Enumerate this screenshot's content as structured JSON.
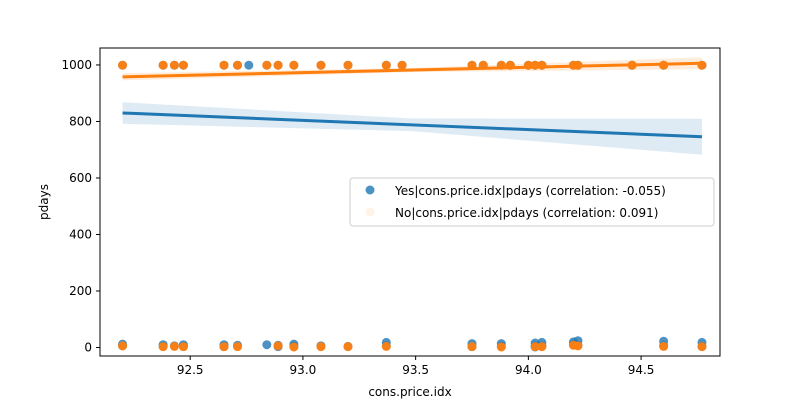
{
  "chart_data": {
    "type": "scatter",
    "title": "",
    "xlabel": "cons.price.idx",
    "ylabel": "pdays",
    "xlim": [
      92.1,
      94.85
    ],
    "ylim": [
      -30,
      1060
    ],
    "xticks": [
      92.5,
      93.0,
      93.5,
      94.0,
      94.5
    ],
    "xtick_labels": [
      "92.5",
      "93.0",
      "93.5",
      "94.0",
      "94.5"
    ],
    "yticks": [
      0,
      200,
      400,
      600,
      800,
      1000
    ],
    "ytick_labels": [
      "0",
      "200",
      "400",
      "600",
      "800",
      "1000"
    ],
    "grid": false,
    "legend_placement": "center-right",
    "series": [
      {
        "name": "Yes|cons.price.idx|pdays (correlation: -0.055)",
        "color": "#1f77b4",
        "marker": "circle",
        "points": [
          [
            92.2,
            999
          ],
          [
            92.38,
            999
          ],
          [
            92.43,
            999
          ],
          [
            92.47,
            999
          ],
          [
            92.65,
            999
          ],
          [
            92.71,
            999
          ],
          [
            92.76,
            999
          ],
          [
            92.84,
            999
          ],
          [
            92.89,
            999
          ],
          [
            92.96,
            999
          ],
          [
            93.08,
            999
          ],
          [
            93.2,
            999
          ],
          [
            93.37,
            999
          ],
          [
            93.44,
            999
          ],
          [
            93.75,
            999
          ],
          [
            93.8,
            999
          ],
          [
            93.88,
            999
          ],
          [
            93.92,
            999
          ],
          [
            94.0,
            999
          ],
          [
            94.03,
            999
          ],
          [
            94.06,
            999
          ],
          [
            94.2,
            999
          ],
          [
            94.22,
            999
          ],
          [
            94.46,
            999
          ],
          [
            94.6,
            999
          ],
          [
            94.77,
            999
          ],
          [
            92.2,
            12
          ],
          [
            92.2,
            6
          ],
          [
            92.38,
            10
          ],
          [
            92.38,
            4
          ],
          [
            92.43,
            6
          ],
          [
            92.47,
            10
          ],
          [
            92.47,
            4
          ],
          [
            92.65,
            10
          ],
          [
            92.65,
            3
          ],
          [
            92.71,
            8
          ],
          [
            92.84,
            10
          ],
          [
            92.89,
            8
          ],
          [
            92.89,
            3
          ],
          [
            92.96,
            12
          ],
          [
            92.96,
            4
          ],
          [
            93.08,
            6
          ],
          [
            93.2,
            4
          ],
          [
            93.37,
            18
          ],
          [
            93.37,
            6
          ],
          [
            93.75,
            14
          ],
          [
            93.75,
            3
          ],
          [
            93.88,
            14
          ],
          [
            93.88,
            4
          ],
          [
            94.03,
            16
          ],
          [
            94.03,
            6
          ],
          [
            94.03,
            2
          ],
          [
            94.06,
            18
          ],
          [
            94.06,
            5
          ],
          [
            94.2,
            20
          ],
          [
            94.2,
            10
          ],
          [
            94.22,
            24
          ],
          [
            94.22,
            8
          ],
          [
            94.6,
            22
          ],
          [
            94.6,
            6
          ],
          [
            94.77,
            18
          ],
          [
            94.77,
            4
          ]
        ],
        "fit": {
          "x": [
            92.2,
            94.77
          ],
          "y": [
            830,
            746
          ]
        }
      },
      {
        "name": "No|cons.price.idx|pdays (correlation: 0.091)",
        "color": "#ff7f0e",
        "marker": "circle",
        "points": [
          [
            92.2,
            999
          ],
          [
            92.38,
            999
          ],
          [
            92.43,
            999
          ],
          [
            92.47,
            999
          ],
          [
            92.65,
            999
          ],
          [
            92.71,
            999
          ],
          [
            92.84,
            999
          ],
          [
            92.89,
            999
          ],
          [
            92.96,
            999
          ],
          [
            93.08,
            999
          ],
          [
            93.2,
            999
          ],
          [
            93.37,
            999
          ],
          [
            93.44,
            999
          ],
          [
            93.75,
            999
          ],
          [
            93.8,
            999
          ],
          [
            93.88,
            999
          ],
          [
            93.92,
            999
          ],
          [
            94.0,
            999
          ],
          [
            94.03,
            999
          ],
          [
            94.06,
            999
          ],
          [
            94.2,
            999
          ],
          [
            94.22,
            999
          ],
          [
            94.46,
            999
          ],
          [
            94.6,
            999
          ],
          [
            94.77,
            999
          ],
          [
            92.2,
            6
          ],
          [
            92.38,
            3
          ],
          [
            92.43,
            4
          ],
          [
            92.47,
            3
          ],
          [
            92.65,
            3
          ],
          [
            92.71,
            3
          ],
          [
            92.89,
            6
          ],
          [
            92.96,
            2
          ],
          [
            93.08,
            3
          ],
          [
            93.2,
            3
          ],
          [
            93.37,
            4
          ],
          [
            93.75,
            3
          ],
          [
            93.88,
            2
          ],
          [
            94.03,
            3
          ],
          [
            94.06,
            3
          ],
          [
            94.2,
            8
          ],
          [
            94.22,
            6
          ],
          [
            94.6,
            4
          ],
          [
            94.77,
            3
          ]
        ],
        "fit": {
          "x": [
            92.2,
            94.77
          ],
          "y": [
            958,
            1006
          ]
        }
      }
    ]
  }
}
